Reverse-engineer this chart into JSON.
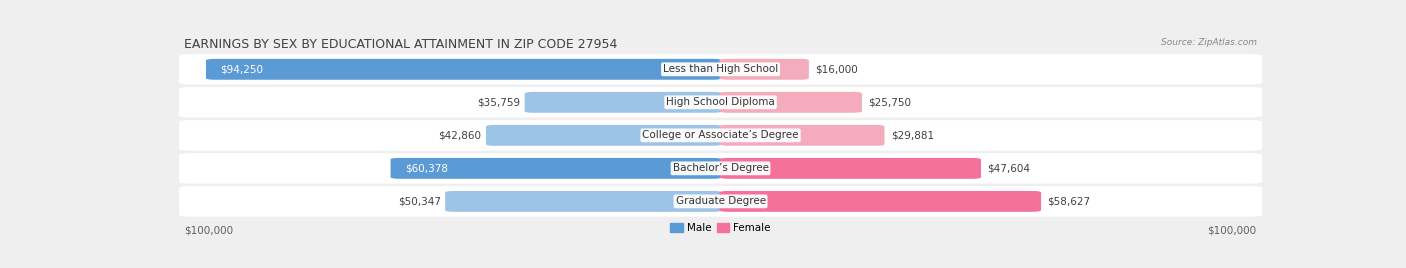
{
  "title": "EARNINGS BY SEX BY EDUCATIONAL ATTAINMENT IN ZIP CODE 27954",
  "source": "Source: ZipAtlas.com",
  "categories": [
    "Less than High School",
    "High School Diploma",
    "College or Associate’s Degree",
    "Bachelor’s Degree",
    "Graduate Degree"
  ],
  "male_values": [
    94250,
    35759,
    42860,
    60378,
    50347
  ],
  "female_values": [
    16000,
    25750,
    29881,
    47604,
    58627
  ],
  "male_label_white": [
    true,
    false,
    false,
    true,
    false
  ],
  "max_value": 100000,
  "male_colors": [
    "#5B9BD5",
    "#9DC3E6",
    "#9DC3E6",
    "#5B9BD5",
    "#9DC3E6"
  ],
  "female_colors": [
    "#F4ABBB",
    "#F4ABBB",
    "#F4ABBB",
    "#F4719A",
    "#F4719A"
  ],
  "bg_color": "#EFEFEF",
  "row_bg": "#FFFFFF",
  "title_color": "#404040",
  "source_color": "#888888",
  "label_font_size": 7.5,
  "title_font_size": 9,
  "axis_label_font_size": 7.5,
  "legend_male_color": "#5B9BD5",
  "legend_female_color": "#F4719A"
}
